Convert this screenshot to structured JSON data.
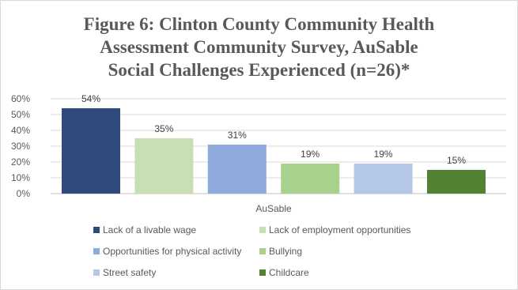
{
  "title_lines": [
    "Figure 6: Clinton County Community Health",
    "Assessment Community Survey, AuSable",
    "Social Challenges Experienced (n=26)*"
  ],
  "chart_data": {
    "type": "bar",
    "title": "Figure 6: Clinton County Community Health Assessment Community Survey, AuSable Social Challenges Experienced (n=26)*",
    "categories": [
      "AuSable"
    ],
    "xlabel": "AuSable",
    "ylabel": "",
    "ylim": [
      0,
      60
    ],
    "yticks": [
      "0%",
      "10%",
      "20%",
      "30%",
      "40%",
      "50%",
      "60%"
    ],
    "grid": true,
    "legend_position": "bottom",
    "series": [
      {
        "name": "Lack of a livable wage",
        "values": [
          54
        ],
        "label": "54%",
        "color": "#2f4b7c"
      },
      {
        "name": "Lack of employment opportunities",
        "values": [
          35
        ],
        "label": "35%",
        "color": "#c6e0b4"
      },
      {
        "name": "Opportunities for physical activity",
        "values": [
          31
        ],
        "label": "31%",
        "color": "#8eaadb"
      },
      {
        "name": "Bullying",
        "values": [
          19
        ],
        "label": "19%",
        "color": "#a9d18e"
      },
      {
        "name": "Street safety",
        "values": [
          19
        ],
        "label": "19%",
        "color": "#b4c7e7"
      },
      {
        "name": "Childcare",
        "values": [
          15
        ],
        "label": "15%",
        "color": "#548235"
      }
    ]
  }
}
